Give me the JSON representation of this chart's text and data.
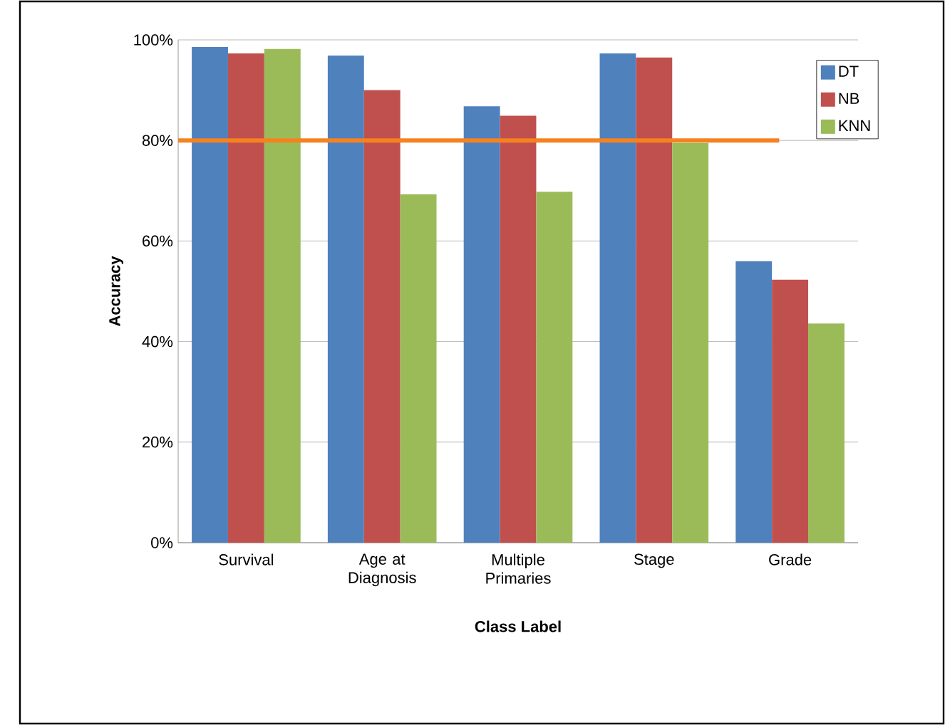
{
  "chart_data": {
    "type": "bar",
    "xlabel": "Class Label",
    "ylabel": "Accuracy",
    "categories": [
      "Survival",
      "Age at Diagnosis",
      "Multiple Primaries",
      "Stage",
      "Grade"
    ],
    "series": [
      {
        "name": "DT",
        "color": "#4f81bd",
        "values": [
          98.6,
          96.9,
          86.8,
          97.3,
          56.0
        ]
      },
      {
        "name": "NB",
        "color": "#c0504d",
        "values": [
          97.3,
          90.0,
          84.9,
          96.5,
          52.3
        ]
      },
      {
        "name": "KNN",
        "color": "#9bbb59",
        "values": [
          98.2,
          69.3,
          69.8,
          79.5,
          43.6
        ]
      }
    ],
    "ylim": [
      0,
      100
    ],
    "yticks": [
      {
        "value": 0,
        "label": "0%"
      },
      {
        "value": 20,
        "label": "20%"
      },
      {
        "value": 40,
        "label": "40%"
      },
      {
        "value": 60,
        "label": "60%"
      },
      {
        "value": 80,
        "label": "80%"
      },
      {
        "value": 100,
        "label": "100%"
      }
    ],
    "ref_lines": [
      {
        "axis": "y",
        "value": 80,
        "color": "#f58220"
      }
    ],
    "grid": "y",
    "legend": "top right"
  }
}
